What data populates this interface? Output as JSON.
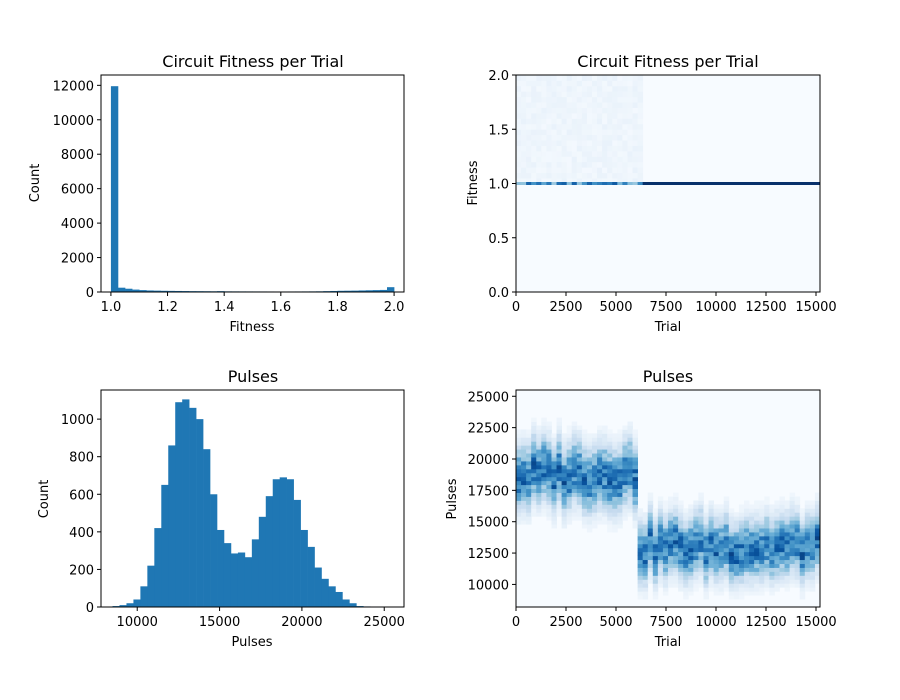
{
  "colors": {
    "bar": "#1f77b4",
    "heat_low": "#f7fbff",
    "heat_high": "#08306b",
    "axis": "#000000"
  },
  "chart_data": [
    {
      "id": "fitness-hist",
      "type": "bar",
      "title": "Circuit Fitness per Trial",
      "xlabel": "Fitness",
      "ylabel": "Count",
      "xlim": [
        0.965,
        2.035
      ],
      "ylim": [
        0,
        12600
      ],
      "xticks": [
        1.0,
        1.2,
        1.4,
        1.6,
        1.8,
        2.0
      ],
      "xtick_labels": [
        "1.0",
        "1.2",
        "1.4",
        "1.6",
        "1.8",
        "2.0"
      ],
      "yticks": [
        0,
        2000,
        4000,
        6000,
        8000,
        10000,
        12000
      ],
      "ytick_labels": [
        "0",
        "2000",
        "4000",
        "6000",
        "8000",
        "10000",
        "12000"
      ],
      "bin_start": 1.0,
      "bin_width": 0.025,
      "values": [
        11950,
        250,
        190,
        140,
        110,
        90,
        80,
        70,
        65,
        60,
        55,
        50,
        48,
        45,
        42,
        50,
        38,
        36,
        35,
        34,
        33,
        32,
        31,
        30,
        30,
        31,
        32,
        34,
        36,
        40,
        50,
        60,
        70,
        75,
        80,
        90,
        100,
        110,
        120,
        280
      ]
    },
    {
      "id": "fitness-heat",
      "type": "heatmap",
      "title": "Circuit Fitness per Trial",
      "xlabel": "Trial",
      "ylabel": "Fitness",
      "xlim": [
        0,
        15200
      ],
      "ylim": [
        0,
        2.0
      ],
      "xticks": [
        0,
        2500,
        5000,
        7500,
        10000,
        12500,
        15000
      ],
      "xtick_labels": [
        "0",
        "2500",
        "5000",
        "7500",
        "10000",
        "12500",
        "15000"
      ],
      "yticks": [
        0.0,
        0.5,
        1.0,
        1.5,
        2.0
      ],
      "ytick_labels": [
        "0.0",
        "0.5",
        "1.0",
        "1.5",
        "2.0"
      ],
      "line_y": 1.0
    },
    {
      "id": "pulses-hist",
      "type": "bar",
      "title": "Pulses",
      "xlabel": "Pulses",
      "ylabel": "Count",
      "xlim": [
        7800,
        26200
      ],
      "ylim": [
        0,
        1155
      ],
      "xticks": [
        10000,
        15000,
        20000,
        25000
      ],
      "xtick_labels": [
        "10000",
        "15000",
        "20000",
        "25000"
      ],
      "yticks": [
        0,
        200,
        400,
        600,
        800,
        1000
      ],
      "ytick_labels": [
        "0",
        "200",
        "400",
        "600",
        "800",
        "1000"
      ],
      "bin_start": 8500,
      "bin_width": 423,
      "values": [
        5,
        10,
        20,
        40,
        110,
        220,
        420,
        650,
        860,
        1090,
        1105,
        1060,
        1000,
        840,
        600,
        410,
        340,
        285,
        290,
        265,
        360,
        480,
        590,
        680,
        690,
        680,
        570,
        410,
        320,
        210,
        150,
        110,
        80,
        40,
        20,
        5,
        3,
        2,
        1,
        1
      ]
    },
    {
      "id": "pulses-heat",
      "type": "heatmap",
      "title": "Pulses",
      "xlabel": "Trial",
      "ylabel": "Pulses",
      "xlim": [
        0,
        15200
      ],
      "ylim": [
        8200,
        25500
      ],
      "xticks": [
        0,
        2500,
        5000,
        7500,
        10000,
        12500,
        15000
      ],
      "xtick_labels": [
        "0",
        "2500",
        "5000",
        "7500",
        "10000",
        "12500",
        "15000"
      ],
      "yticks": [
        10000,
        12500,
        15000,
        17500,
        20000,
        22500,
        25000
      ],
      "ytick_labels": [
        "10000",
        "12500",
        "15000",
        "17500",
        "20000",
        "22500",
        "25000"
      ],
      "segments": [
        {
          "x_from": 0,
          "x_to": 6100,
          "center": 18800,
          "spread": 1600
        },
        {
          "x_from": 6100,
          "x_to": 15200,
          "center": 13000,
          "spread": 1500
        }
      ]
    }
  ]
}
